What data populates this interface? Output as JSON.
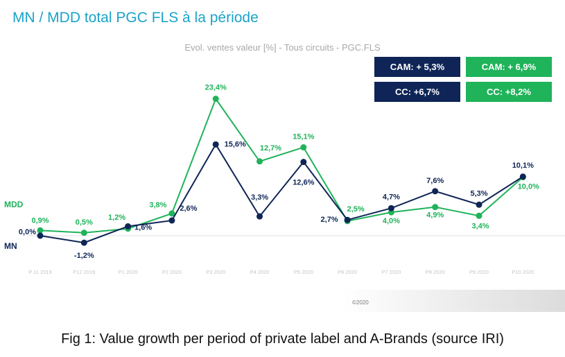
{
  "page": {
    "title": "MN / MDD total PGC FLS à la période",
    "caption": "Fig 1: Value growth per period of private label and A-Brands (source IRI)",
    "copyright": "©2020"
  },
  "badges": {
    "mn_cam": "CAM: + 5,3%",
    "mdd_cam": "CAM: + 6,9%",
    "mn_cc": "CC: +6,7%",
    "mdd_cc": "CC: +8,2%"
  },
  "colors": {
    "mn": "#0f2557",
    "mdd": "#1fb35a",
    "title": "#1aa3c8"
  },
  "chart_data": {
    "type": "line",
    "title": "Evol. ventes valeur [%] - Tous circuits - PGC.FLS",
    "categories": [
      "P 11 2019",
      "P12 2019",
      "P1 2020",
      "P2 2020",
      "P3 2020",
      "P4 2020",
      "P5 2020",
      "P6 2020",
      "P7 2020",
      "P8 2020",
      "P9 2020",
      "P10 2020"
    ],
    "series": [
      {
        "name": "MN",
        "values": [
          0.0,
          -1.2,
          1.6,
          2.6,
          15.6,
          3.3,
          12.6,
          2.7,
          4.7,
          7.6,
          5.3,
          10.1
        ],
        "labels": [
          "0,0%",
          "-1,2%",
          "1,6%",
          "2,6%",
          "15,6%",
          "3,3%",
          "12,6%",
          "2,7%",
          "4,7%",
          "7,6%",
          "5,3%",
          "10,1%"
        ]
      },
      {
        "name": "MDD",
        "values": [
          0.9,
          0.5,
          1.2,
          3.8,
          23.4,
          12.7,
          15.1,
          2.5,
          4.0,
          4.9,
          3.4,
          10.0
        ],
        "labels": [
          "0,9%",
          "0,5%",
          "1,2%",
          "3,8%",
          "23,4%",
          "12,7%",
          "15,1%",
          "2,5%",
          "4,0%",
          "4,9%",
          "3,4%",
          "10,0%"
        ]
      }
    ],
    "ylim": [
      -2,
      25
    ],
    "grid": false,
    "zero_line": true
  }
}
